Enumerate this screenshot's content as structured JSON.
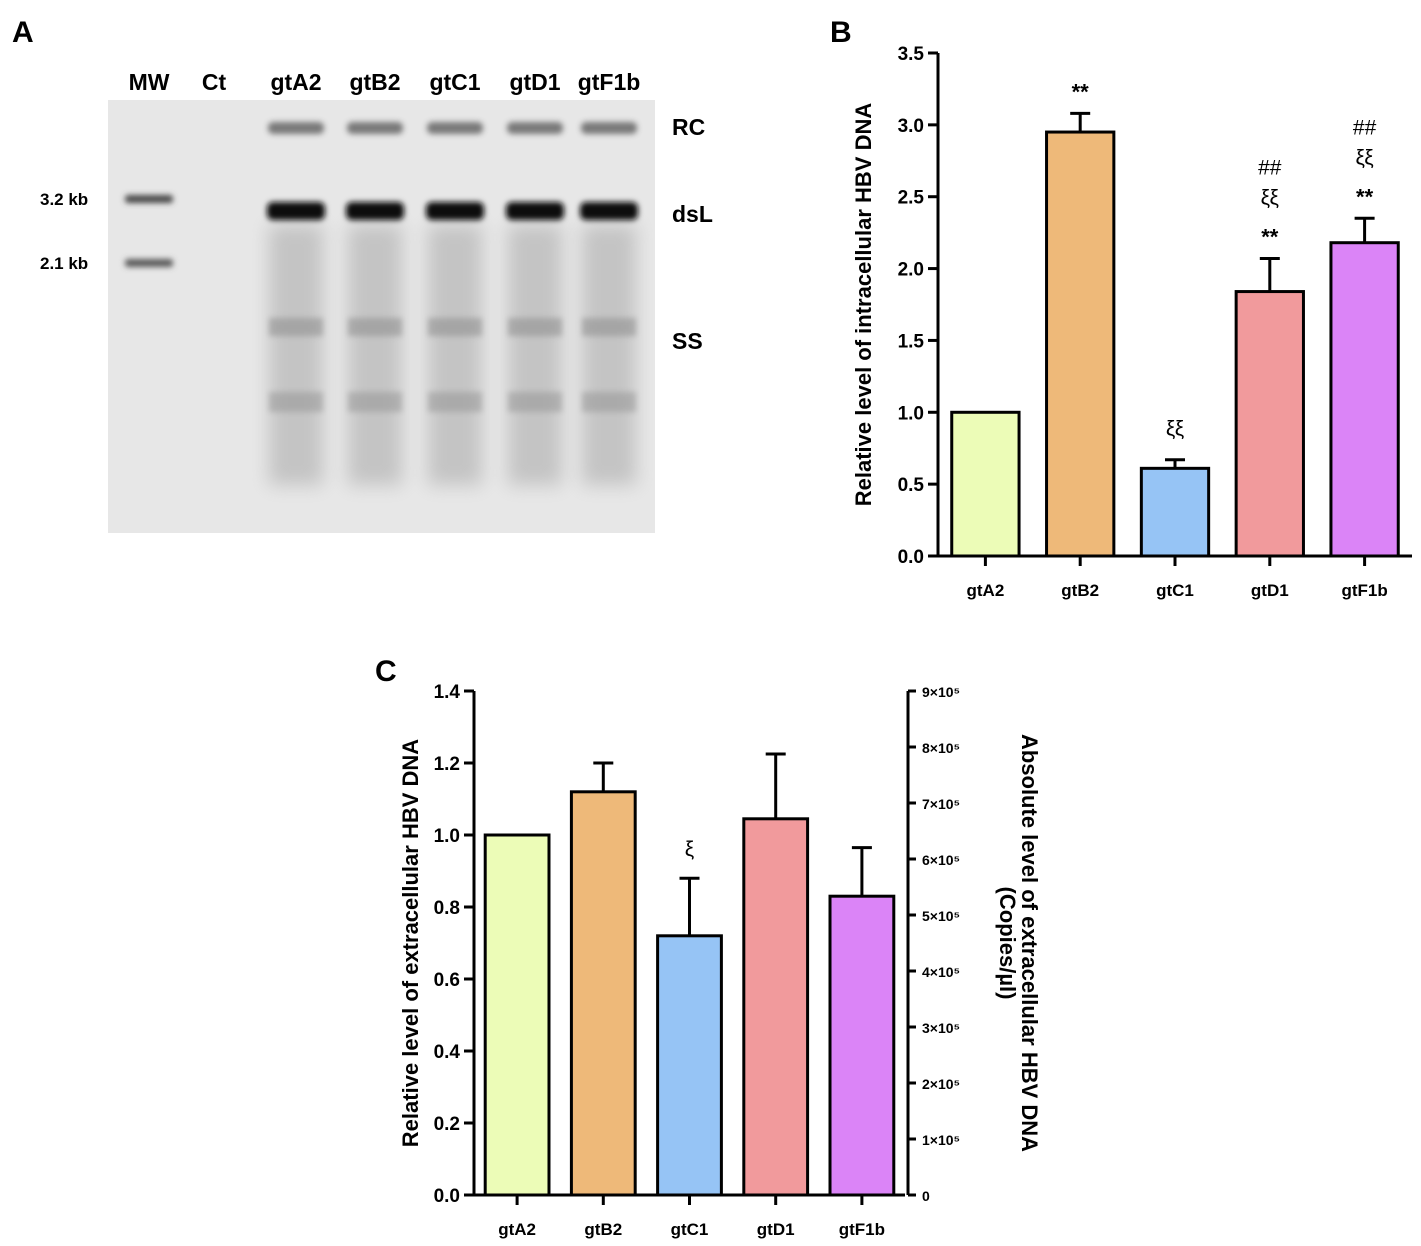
{
  "panels": {
    "a": "A",
    "b": "B",
    "c": "C"
  },
  "gel": {
    "lanes": [
      "MW",
      "Ct",
      "gtA2",
      "gtB2",
      "gtC1",
      "gtD1",
      "gtF1b"
    ],
    "bands": [
      "RC",
      "dsL",
      "SS"
    ],
    "markers": [
      "3.2 kb",
      "2.1 kb"
    ]
  },
  "colors": {
    "gtA2": "#ecfcb7",
    "gtB2": "#eeb979",
    "gtC1": "#96c4f5",
    "gtD1": "#f19a9c",
    "gtF1b": "#db84f7"
  },
  "chart_data": [
    {
      "panel": "B",
      "type": "bar",
      "categories": [
        "gtA2",
        "gtB2",
        "gtC1",
        "gtD1",
        "gtF1b"
      ],
      "values": [
        1.0,
        2.95,
        0.61,
        1.84,
        2.18
      ],
      "errors": [
        0,
        0.13,
        0.06,
        0.23,
        0.17
      ],
      "ylabel": "Relative level of intracellular HBV DNA",
      "ylim": [
        0,
        3.5
      ],
      "yticks": [
        "0.0",
        "0.5",
        "1.0",
        "1.5",
        "2.0",
        "2.5",
        "3.0",
        "3.5"
      ],
      "annotations": [
        {
          "category": "gtB2",
          "lines": [
            "**"
          ]
        },
        {
          "category": "gtC1",
          "lines": [
            "ξξ"
          ]
        },
        {
          "category": "gtD1",
          "lines": [
            "##",
            "ξξ",
            "**"
          ]
        },
        {
          "category": "gtF1b",
          "lines": [
            "##",
            "ξξ",
            "**"
          ]
        }
      ],
      "grid": false
    },
    {
      "panel": "C",
      "type": "bar",
      "categories": [
        "gtA2",
        "gtB2",
        "gtC1",
        "gtD1",
        "gtF1b"
      ],
      "values": [
        1.0,
        1.12,
        0.72,
        1.045,
        0.83
      ],
      "errors": [
        0,
        0.08,
        0.16,
        0.18,
        0.135
      ],
      "ylabel": "Relative level of extracellular HBV DNA",
      "ylim": [
        0,
        1.4
      ],
      "yticks": [
        "0.0",
        "0.2",
        "0.4",
        "0.6",
        "0.8",
        "1.0",
        "1.2",
        "1.4"
      ],
      "y2label_lines": [
        "Absolute level of extracellular HBV DNA",
        "(Copies/µl)"
      ],
      "y2lim": [
        0,
        900000
      ],
      "y2ticks": [
        "0",
        "1×10⁵",
        "2×10⁵",
        "3×10⁵",
        "4×10⁵",
        "5×10⁵",
        "6×10⁵",
        "7×10⁵",
        "8×10⁵",
        "9×10⁵"
      ],
      "annotations": [
        {
          "category": "gtC1",
          "lines": [
            "ξ"
          ]
        }
      ],
      "grid": false
    }
  ]
}
